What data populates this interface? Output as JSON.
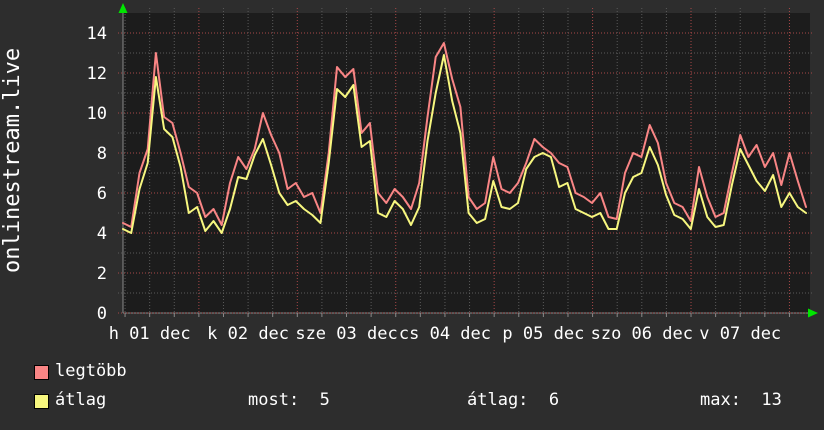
{
  "title": "onlinestream.live",
  "colors": {
    "background": "#2d2d2d",
    "plot_background": "#1c1c1c",
    "grid_minor": "#5a5a5a",
    "grid_major": "#a84848",
    "axis": "#8a8a8a",
    "arrow": "#00e600",
    "text": "#ffffff",
    "series_max": "#f98585",
    "series_avg": "#f7f77f"
  },
  "legend": {
    "items": [
      {
        "label": "legtöbb",
        "swatch": "#f98585"
      },
      {
        "label": "átlag",
        "swatch": "#f7f77f"
      }
    ]
  },
  "stats": {
    "most": "most:  5",
    "atlag": "átlag:  6",
    "max": "max:  13"
  },
  "chart_data": {
    "type": "line",
    "title": "onlinestream.live",
    "xlabel": "",
    "ylabel": "",
    "ylim": [
      0,
      15
    ],
    "y_ticks": [
      0,
      2,
      4,
      6,
      8,
      10,
      12,
      14
    ],
    "y_minor_step": 1,
    "grid": "dotted, minor gray every 1 / 6h, major red every 2 / midnight",
    "legend_position": "bottom-left",
    "x_labels": [
      "h 01 dec",
      "k 02 dec",
      "sze 03 dec",
      "cs 04 dec",
      "p 05 dec",
      "szo 06 dec",
      "v 07 dec"
    ],
    "days_shown": 7,
    "samples_per_day": 12,
    "series": [
      {
        "name": "legtöbb",
        "color": "#f98585",
        "values": [
          4.5,
          4.3,
          7.0,
          8.2,
          13.0,
          9.8,
          9.5,
          8.0,
          6.3,
          6.0,
          4.8,
          5.2,
          4.4,
          6.5,
          7.8,
          7.2,
          8.2,
          10.0,
          8.9,
          8.0,
          6.2,
          6.5,
          5.8,
          6.0,
          5.0,
          8.0,
          12.3,
          11.8,
          12.2,
          9.0,
          9.5,
          6.0,
          5.5,
          6.2,
          5.8,
          5.2,
          6.5,
          9.8,
          12.8,
          13.5,
          11.7,
          10.3,
          5.8,
          5.2,
          5.5,
          7.8,
          6.2,
          6.0,
          6.5,
          7.5,
          8.7,
          8.3,
          8.0,
          7.5,
          7.3,
          6.0,
          5.8,
          5.5,
          6.0,
          4.8,
          4.7,
          7.0,
          8.0,
          7.8,
          9.4,
          8.5,
          6.5,
          5.5,
          5.3,
          4.6,
          7.3,
          5.8,
          4.8,
          5.0,
          7.0,
          8.9,
          7.8,
          8.4,
          7.3,
          8.0,
          6.4,
          8.0,
          6.6,
          5.3
        ]
      },
      {
        "name": "átlag",
        "color": "#f7f77f",
        "values": [
          4.2,
          4.0,
          6.2,
          7.5,
          11.8,
          9.2,
          8.8,
          7.3,
          5.0,
          5.3,
          4.1,
          4.6,
          4.0,
          5.2,
          6.8,
          6.7,
          7.9,
          8.7,
          7.4,
          6.0,
          5.4,
          5.6,
          5.2,
          4.9,
          4.5,
          7.5,
          11.2,
          10.8,
          11.4,
          8.3,
          8.6,
          5.0,
          4.8,
          5.6,
          5.2,
          4.4,
          5.3,
          8.6,
          11.0,
          12.9,
          10.6,
          9.0,
          5.0,
          4.5,
          4.7,
          6.6,
          5.3,
          5.2,
          5.5,
          7.2,
          7.8,
          8.0,
          7.8,
          6.3,
          6.5,
          5.2,
          5.0,
          4.8,
          5.0,
          4.2,
          4.2,
          6.0,
          6.8,
          7.0,
          8.3,
          7.4,
          5.9,
          4.9,
          4.7,
          4.2,
          6.2,
          4.8,
          4.3,
          4.4,
          6.4,
          8.2,
          7.4,
          6.6,
          6.1,
          6.9,
          5.3,
          6.0,
          5.3,
          5.0
        ]
      }
    ],
    "summary": {
      "most": 5,
      "atlag": 6,
      "max": 13
    }
  }
}
